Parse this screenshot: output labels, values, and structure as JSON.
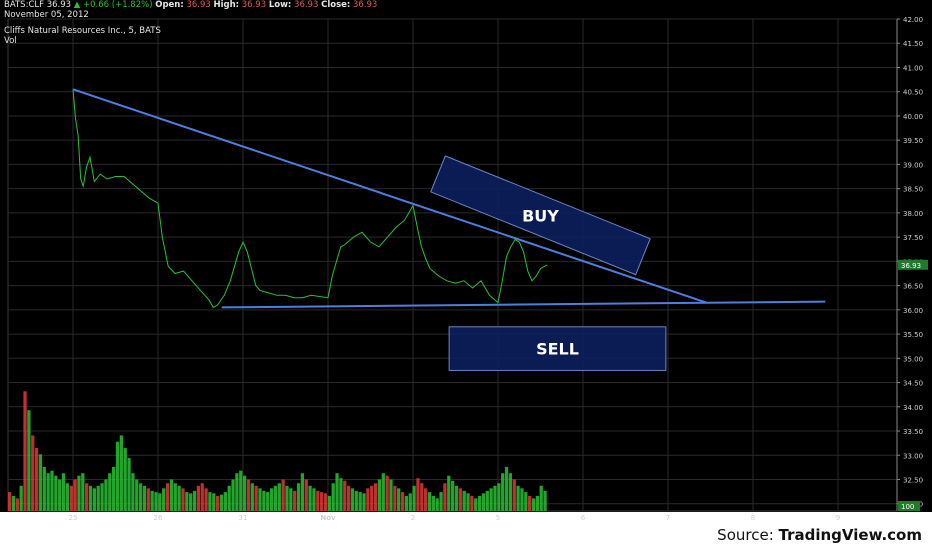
{
  "header": {
    "symbol": "BATS:CLF",
    "last": "36.93",
    "change": "+0.66 (+1.82%)",
    "open_label": "Open:",
    "open": "36.93",
    "high_label": "High:",
    "high": "36.93",
    "low_label": "Low:",
    "low": "36.93",
    "close_label": "Close:",
    "close": "36.93",
    "date": "November 05, 2012",
    "up_arrow": "▲"
  },
  "source": {
    "prefix": "Source: ",
    "brand": "TradingView.com"
  },
  "chart_data": {
    "type": "line",
    "title": "Cliffs Natural Resources Inc., 5, BATS",
    "subtitle": "Vol",
    "x_ticks": [
      "25",
      "26",
      "31",
      "Nov",
      "2",
      "5",
      "6",
      "7",
      "8",
      "9"
    ],
    "y_ticks": [
      "42.00",
      "41.50",
      "41.00",
      "40.50",
      "40.00",
      "39.50",
      "39.00",
      "38.50",
      "38.00",
      "37.50",
      "37.00",
      "36.50",
      "36.00",
      "35.50",
      "35.00",
      "34.50",
      "34.00",
      "33.50",
      "33.00",
      "32.50",
      "32.00"
    ],
    "ylim": [
      31.85,
      42.0
    ],
    "price_label": "36.93",
    "volume_label": "100",
    "colors": {
      "up": "#29c235",
      "down": "#e03a3a",
      "trendline": "#4d7fe0",
      "box_fill": "#0d1f5c",
      "box_edge": "#7a8fd6",
      "grid": "#2a2a2a"
    },
    "price_series": [
      {
        "x": 0.0,
        "y": 40.55
      },
      {
        "x": 0.03,
        "y": 39.95
      },
      {
        "x": 0.06,
        "y": 39.6
      },
      {
        "x": 0.09,
        "y": 38.7
      },
      {
        "x": 0.12,
        "y": 38.55
      },
      {
        "x": 0.16,
        "y": 38.95
      },
      {
        "x": 0.2,
        "y": 39.15
      },
      {
        "x": 0.25,
        "y": 38.65
      },
      {
        "x": 0.32,
        "y": 38.8
      },
      {
        "x": 0.4,
        "y": 38.7
      },
      {
        "x": 0.5,
        "y": 38.75
      },
      {
        "x": 0.6,
        "y": 38.75
      },
      {
        "x": 0.7,
        "y": 38.6
      },
      {
        "x": 0.8,
        "y": 38.45
      },
      {
        "x": 0.9,
        "y": 38.3
      },
      {
        "x": 1.0,
        "y": 38.2
      },
      {
        "x": 1.05,
        "y": 37.5
      },
      {
        "x": 1.12,
        "y": 36.9
      },
      {
        "x": 1.2,
        "y": 36.75
      },
      {
        "x": 1.3,
        "y": 36.8
      },
      {
        "x": 1.4,
        "y": 36.6
      },
      {
        "x": 1.5,
        "y": 36.4
      },
      {
        "x": 1.6,
        "y": 36.2
      },
      {
        "x": 1.65,
        "y": 36.05
      },
      {
        "x": 1.7,
        "y": 36.1
      },
      {
        "x": 1.78,
        "y": 36.3
      },
      {
        "x": 1.85,
        "y": 36.6
      },
      {
        "x": 1.9,
        "y": 36.9
      },
      {
        "x": 1.95,
        "y": 37.2
      },
      {
        "x": 2.0,
        "y": 37.4
      },
      {
        "x": 2.05,
        "y": 37.2
      },
      {
        "x": 2.1,
        "y": 36.85
      },
      {
        "x": 2.15,
        "y": 36.5
      },
      {
        "x": 2.2,
        "y": 36.4
      },
      {
        "x": 2.3,
        "y": 36.35
      },
      {
        "x": 2.4,
        "y": 36.3
      },
      {
        "x": 2.5,
        "y": 36.3
      },
      {
        "x": 2.6,
        "y": 36.25
      },
      {
        "x": 2.7,
        "y": 36.25
      },
      {
        "x": 2.8,
        "y": 36.3
      },
      {
        "x": 3.0,
        "y": 36.25
      },
      {
        "x": 3.05,
        "y": 36.7
      },
      {
        "x": 3.1,
        "y": 37.0
      },
      {
        "x": 3.15,
        "y": 37.3
      },
      {
        "x": 3.2,
        "y": 37.35
      },
      {
        "x": 3.3,
        "y": 37.5
      },
      {
        "x": 3.4,
        "y": 37.6
      },
      {
        "x": 3.5,
        "y": 37.4
      },
      {
        "x": 3.6,
        "y": 37.3
      },
      {
        "x": 3.7,
        "y": 37.5
      },
      {
        "x": 3.8,
        "y": 37.7
      },
      {
        "x": 3.9,
        "y": 37.85
      },
      {
        "x": 4.0,
        "y": 38.15
      },
      {
        "x": 4.05,
        "y": 37.7
      },
      {
        "x": 4.1,
        "y": 37.3
      },
      {
        "x": 4.15,
        "y": 37.05
      },
      {
        "x": 4.2,
        "y": 36.85
      },
      {
        "x": 4.3,
        "y": 36.7
      },
      {
        "x": 4.4,
        "y": 36.6
      },
      {
        "x": 4.5,
        "y": 36.55
      },
      {
        "x": 4.6,
        "y": 36.6
      },
      {
        "x": 4.7,
        "y": 36.45
      },
      {
        "x": 4.8,
        "y": 36.6
      },
      {
        "x": 4.9,
        "y": 36.3
      },
      {
        "x": 5.0,
        "y": 36.15
      },
      {
        "x": 5.05,
        "y": 36.6
      },
      {
        "x": 5.1,
        "y": 37.1
      },
      {
        "x": 5.15,
        "y": 37.3
      },
      {
        "x": 5.2,
        "y": 37.45
      },
      {
        "x": 5.25,
        "y": 37.4
      },
      {
        "x": 5.3,
        "y": 37.2
      },
      {
        "x": 5.35,
        "y": 36.8
      },
      {
        "x": 5.4,
        "y": 36.6
      },
      {
        "x": 5.45,
        "y": 36.7
      },
      {
        "x": 5.5,
        "y": 36.85
      },
      {
        "x": 5.55,
        "y": 36.9
      },
      {
        "x": 5.58,
        "y": 36.93
      }
    ],
    "volume_series": [
      0.15,
      0.12,
      0.1,
      0.2,
      0.95,
      0.8,
      0.6,
      0.5,
      0.45,
      0.35,
      0.3,
      0.32,
      0.28,
      0.25,
      0.3,
      0.22,
      0.2,
      0.25,
      0.28,
      0.3,
      0.22,
      0.2,
      0.18,
      0.2,
      0.22,
      0.25,
      0.3,
      0.35,
      0.55,
      0.6,
      0.5,
      0.42,
      0.3,
      0.25,
      0.22,
      0.2,
      0.18,
      0.16,
      0.15,
      0.14,
      0.18,
      0.22,
      0.25,
      0.22,
      0.2,
      0.18,
      0.15,
      0.14,
      0.16,
      0.2,
      0.22,
      0.18,
      0.15,
      0.14,
      0.12,
      0.13,
      0.15,
      0.2,
      0.25,
      0.3,
      0.32,
      0.28,
      0.25,
      0.22,
      0.2,
      0.18,
      0.16,
      0.15,
      0.18,
      0.2,
      0.22,
      0.25,
      0.2,
      0.18,
      0.16,
      0.22,
      0.3,
      0.25,
      0.2,
      0.18,
      0.16,
      0.15,
      0.14,
      0.12,
      0.22,
      0.3,
      0.26,
      0.24,
      0.2,
      0.18,
      0.16,
      0.15,
      0.14,
      0.18,
      0.2,
      0.22,
      0.25,
      0.3,
      0.28,
      0.25,
      0.2,
      0.18,
      0.15,
      0.12,
      0.14,
      0.2,
      0.26,
      0.22,
      0.18,
      0.15,
      0.12,
      0.1,
      0.15,
      0.22,
      0.28,
      0.24,
      0.2,
      0.18,
      0.16,
      0.14,
      0.12,
      0.1,
      0.12,
      0.14,
      0.16,
      0.18,
      0.2,
      0.22,
      0.3,
      0.35,
      0.3,
      0.25,
      0.2,
      0.18,
      0.15,
      0.12,
      0.1,
      0.12,
      0.2,
      0.16
    ],
    "annotations": [
      {
        "type": "trendline",
        "x1": 0.0,
        "y1": 40.55,
        "x2": 7.45,
        "y2": 36.15
      },
      {
        "type": "trendline",
        "x1": 1.75,
        "y1": 36.05,
        "x2": 8.85,
        "y2": 36.17
      },
      {
        "type": "box",
        "label": "BUY",
        "cx": 5.5,
        "cy": 37.95,
        "w": 2.6,
        "h": 0.8,
        "angle": 22
      },
      {
        "type": "box",
        "label": "SELL",
        "cx": 5.7,
        "cy": 35.2,
        "w": 2.55,
        "h": 0.9,
        "angle": 0
      }
    ]
  }
}
